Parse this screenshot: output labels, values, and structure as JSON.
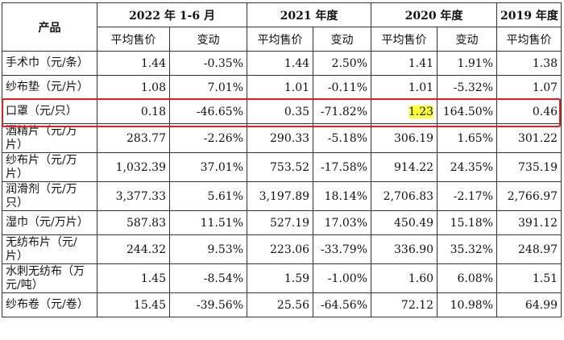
{
  "header": {
    "product": "产品",
    "periods": [
      "2022 年 1-6 月",
      "2021 年度",
      "2020 年度",
      "2019 年度"
    ],
    "avg_price": "平均售价",
    "change": "变动"
  },
  "rows": [
    {
      "name": "手术巾（元/条）",
      "v": [
        "1.44",
        "-0.35%",
        "1.44",
        "2.50%",
        "1.41",
        "1.91%",
        "1.38"
      ]
    },
    {
      "name": "纱布垫（元/片）",
      "v": [
        "1.08",
        "7.01%",
        "1.01",
        "-0.11%",
        "1.01",
        "-5.32%",
        "1.07"
      ]
    },
    {
      "name": "口罩（元/只）",
      "v": [
        "0.18",
        "-46.65%",
        "0.35",
        "-71.82%",
        "1.23",
        "164.50%",
        "0.46"
      ]
    },
    {
      "name": "酒精片（元/万片）",
      "v": [
        "283.77",
        "-2.26%",
        "290.33",
        "-5.18%",
        "306.19",
        "1.65%",
        "301.22"
      ]
    },
    {
      "name": "纱布片（元/万片）",
      "v": [
        "1,032.39",
        "37.01%",
        "753.52",
        "-17.58%",
        "914.22",
        "24.35%",
        "735.19"
      ]
    },
    {
      "name": "润滑剂（元/万只）",
      "v": [
        "3,377.33",
        "5.61%",
        "3,197.89",
        "18.14%",
        "2,706.83",
        "-2.17%",
        "2,766.97"
      ]
    },
    {
      "name": "湿巾（元/万片）",
      "v": [
        "587.83",
        "11.51%",
        "527.19",
        "17.03%",
        "450.49",
        "15.18%",
        "391.12"
      ]
    },
    {
      "name": "无纺布片（元/片）",
      "v": [
        "244.32",
        "9.53%",
        "223.06",
        "-33.79%",
        "336.90",
        "35.32%",
        "248.97"
      ]
    },
    {
      "name": "水刺无纺布（万元/吨）",
      "v": [
        "1.45",
        "-8.54%",
        "1.59",
        "-1.00%",
        "1.60",
        "6.08%",
        "1.51"
      ]
    },
    {
      "name": "纱布卷（元/卷）",
      "v": [
        "15.45",
        "-39.56%",
        "25.56",
        "-64.56%",
        "72.12",
        "10.98%",
        "64.99"
      ]
    }
  ],
  "highlight_color": "#ffff33",
  "outline_color": "#e02020"
}
